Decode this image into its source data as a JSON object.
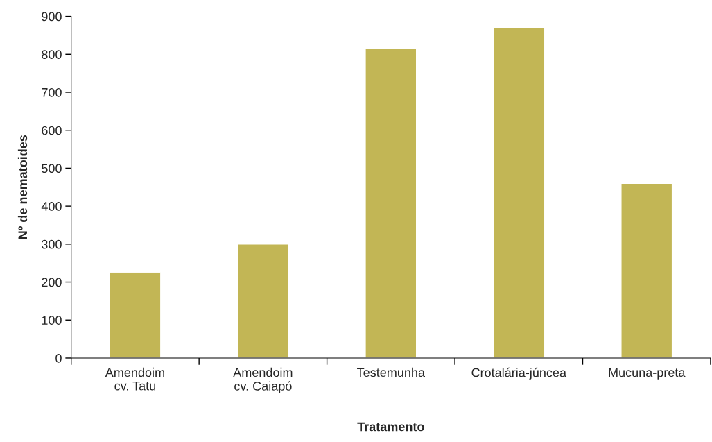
{
  "chart_data": {
    "type": "bar",
    "xlabel": "Tratamento",
    "ylabel": "Nº de nematoides",
    "categories": [
      "Amendoim\ncv. Tatu",
      "Amendoim\ncv. Caiapó",
      "Testemunha",
      "Crotalária-júncea",
      "Mucuna-preta"
    ],
    "values": [
      225,
      300,
      815,
      870,
      460
    ],
    "color": "#c2b655",
    "ylim": [
      0,
      900
    ],
    "yticks": [
      0,
      100,
      200,
      300,
      400,
      500,
      600,
      700,
      800,
      900
    ],
    "grid": false
  }
}
